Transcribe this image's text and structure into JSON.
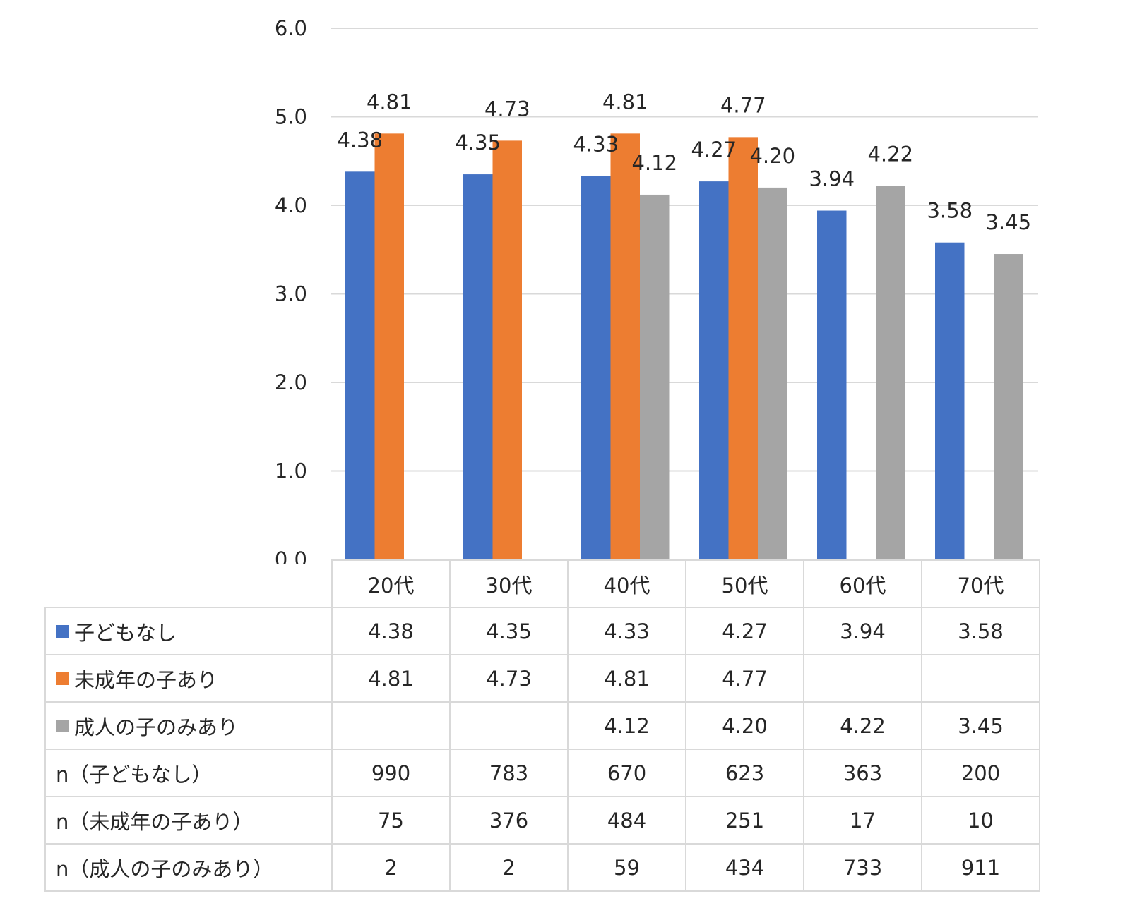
{
  "chart_data": {
    "type": "bar",
    "categories": [
      "20代",
      "30代",
      "40代",
      "50代",
      "60代",
      "70代"
    ],
    "ylim": [
      0,
      6
    ],
    "yticks": [
      "0.0",
      "1.0",
      "2.0",
      "3.0",
      "4.0",
      "5.0",
      "6.0"
    ],
    "grid": true,
    "series": [
      {
        "name": "子どもなし",
        "color": "#4472C4",
        "values": [
          4.38,
          4.35,
          4.33,
          4.27,
          3.94,
          3.58
        ],
        "labels": [
          "4.38",
          "4.35",
          "4.33",
          "4.27",
          "3.94",
          "3.58"
        ]
      },
      {
        "name": "未成年の子あり",
        "color": "#ED7D31",
        "values": [
          4.81,
          4.73,
          4.81,
          4.77,
          null,
          null
        ],
        "labels": [
          "4.81",
          "4.73",
          "4.81",
          "4.77",
          "",
          ""
        ]
      },
      {
        "name": "成人の子のみあり",
        "color": "#A5A5A5",
        "values": [
          null,
          null,
          4.12,
          4.2,
          4.22,
          3.45
        ],
        "labels": [
          "",
          "",
          "4.12",
          "4.20",
          "4.22",
          "3.45"
        ]
      }
    ],
    "n_rows": [
      {
        "label": "n（子どもなし）",
        "values": [
          "990",
          "783",
          "670",
          "623",
          "363",
          "200"
        ]
      },
      {
        "label": "n（未成年の子あり）",
        "values": [
          "75",
          "376",
          "484",
          "251",
          "17",
          "10"
        ]
      },
      {
        "label": "n（成人の子のみあり）",
        "values": [
          "2",
          "2",
          "59",
          "434",
          "733",
          "911"
        ]
      }
    ]
  }
}
